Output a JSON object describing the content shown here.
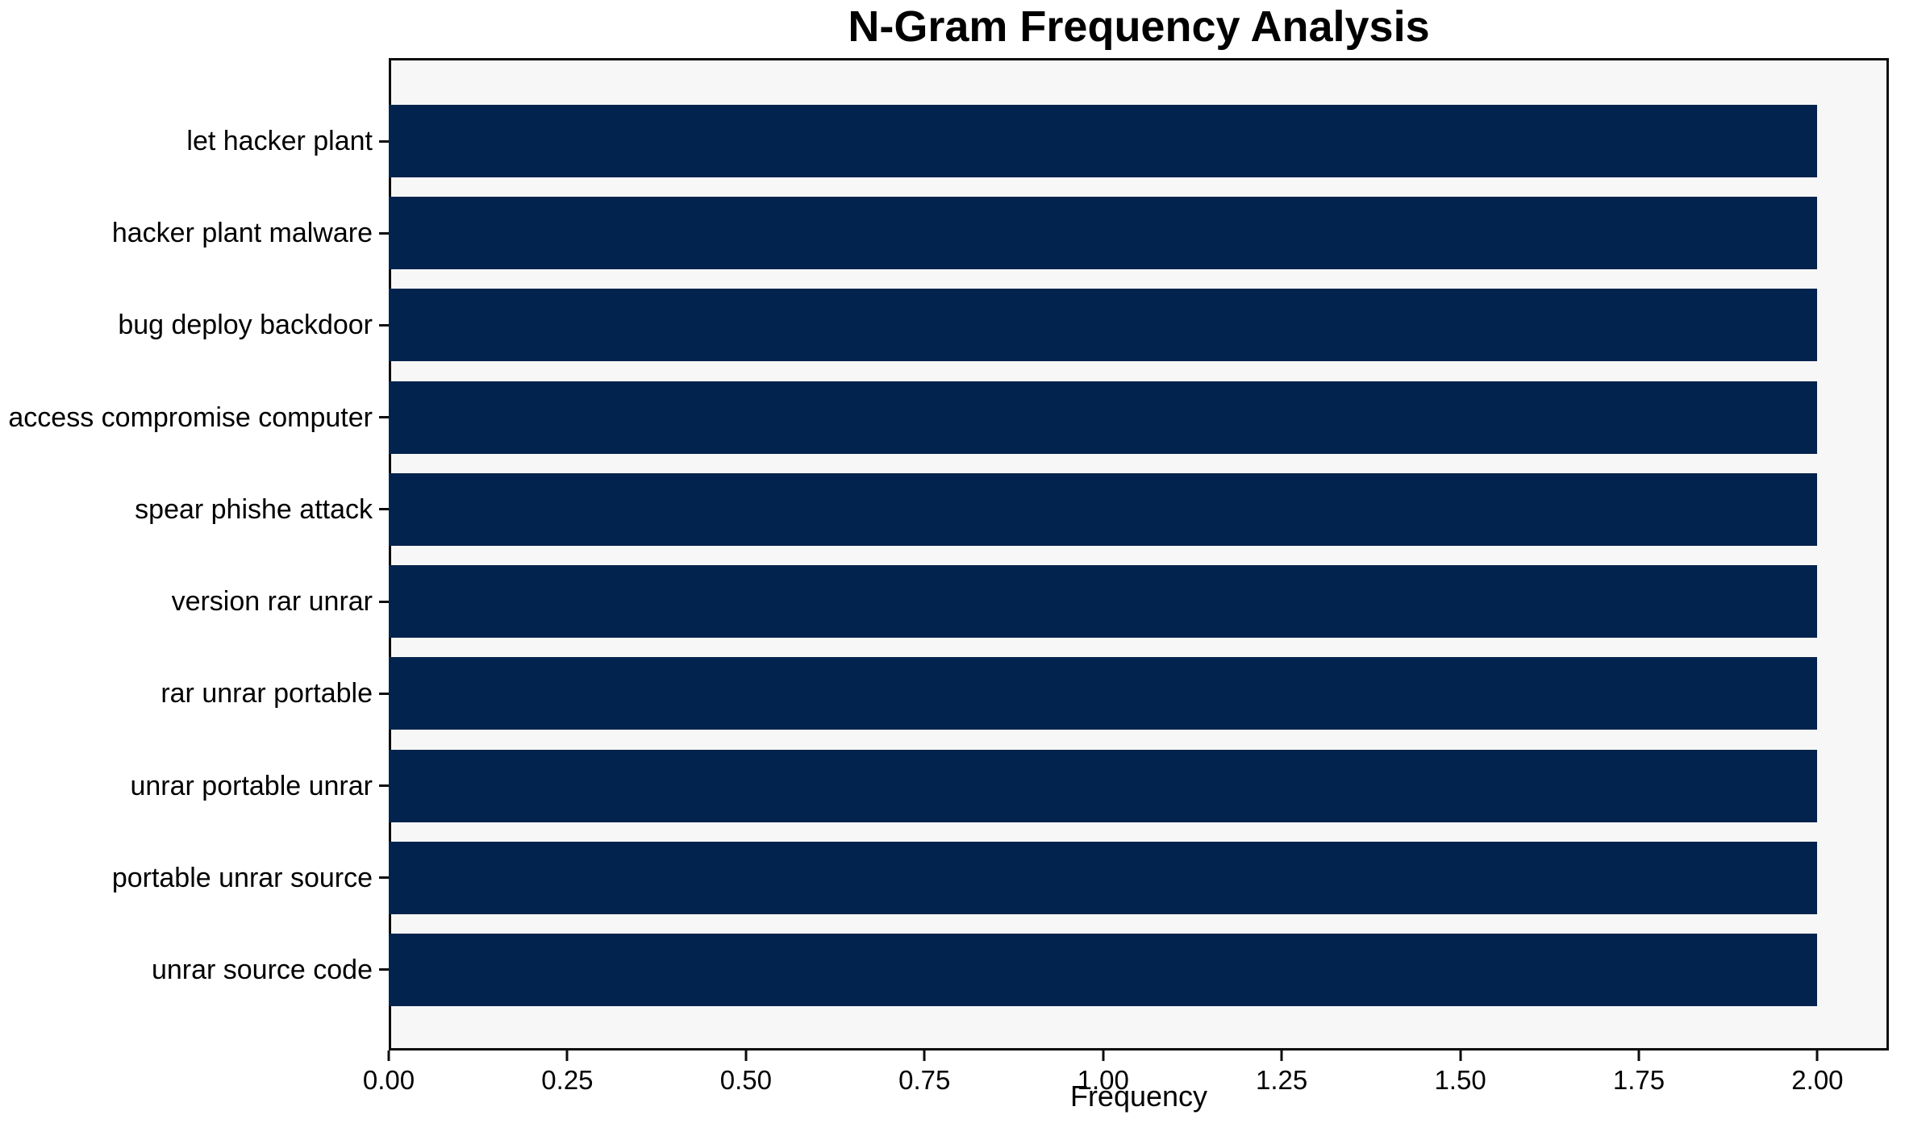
{
  "chart_data": {
    "type": "bar",
    "orientation": "horizontal",
    "title": "N-Gram Frequency Analysis",
    "xlabel": "Frequency",
    "ylabel": "",
    "categories": [
      "let hacker plant",
      "hacker plant malware",
      "bug deploy backdoor",
      "access compromise computer",
      "spear phishe attack",
      "version rar unrar",
      "rar unrar portable",
      "unrar portable unrar",
      "portable unrar source",
      "unrar source code"
    ],
    "values": [
      2,
      2,
      2,
      2,
      2,
      2,
      2,
      2,
      2,
      2
    ],
    "xlim": [
      0,
      2.1
    ],
    "xticks": [
      "0.00",
      "0.25",
      "0.50",
      "0.75",
      "1.00",
      "1.25",
      "1.50",
      "1.75",
      "2.00"
    ],
    "grid": false,
    "legend": null,
    "colors": {
      "bar": "#02234d",
      "plot_background": "#f7f7f7",
      "figure_background": "#ffffff",
      "axis": "#0d0d0d",
      "text": "#000000"
    }
  }
}
